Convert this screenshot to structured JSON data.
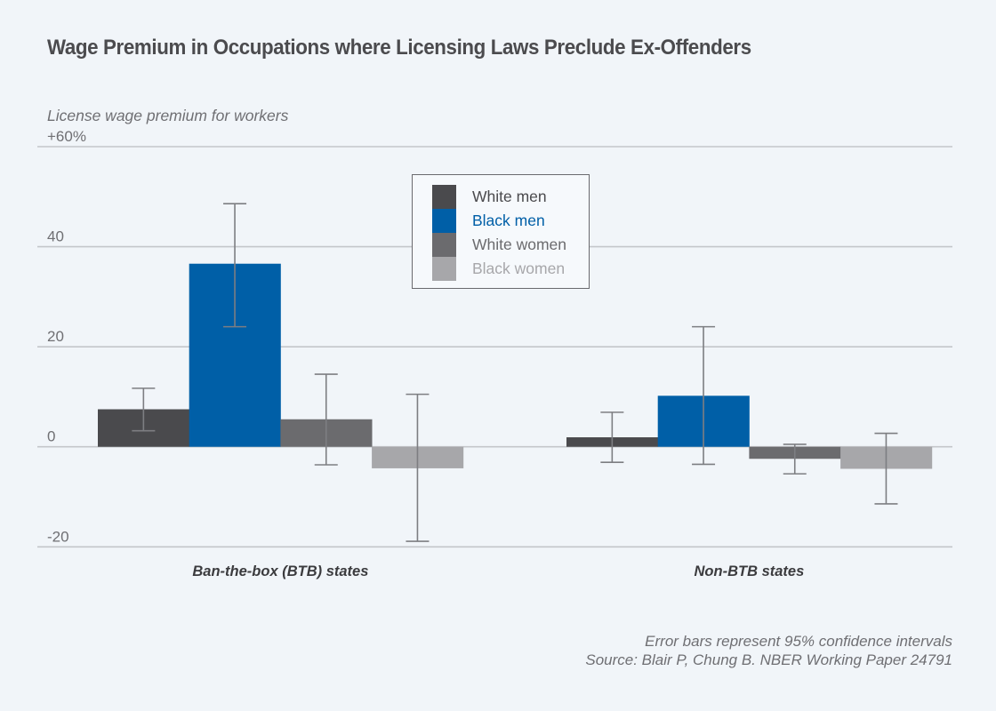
{
  "chart_data": {
    "type": "bar",
    "title": "Wage Premium in Occupations where Licensing Laws Preclude Ex-Offenders",
    "ylabel": "License wage premium for workers",
    "xlabel": "",
    "ylim": [
      -20,
      60
    ],
    "yticks": [
      {
        "value": 60,
        "label": "+60%"
      },
      {
        "value": 40,
        "label": "40"
      },
      {
        "value": 20,
        "label": "20"
      },
      {
        "value": 0,
        "label": "0"
      },
      {
        "value": -20,
        "label": "-20"
      }
    ],
    "grid": true,
    "legend_position": "top-center",
    "categories": [
      "Ban-the-box (BTB) states",
      "Non-BTB states"
    ],
    "series": [
      {
        "name": "White men",
        "color": "#4a4a4d",
        "legend_text_color": "#4a4a4d",
        "values": [
          7.5,
          1.9
        ],
        "error_low": [
          3.2,
          -3.1
        ],
        "error_high": [
          11.7,
          6.9
        ]
      },
      {
        "name": "Black men",
        "color": "#005fa7",
        "legend_text_color": "#005fa7",
        "values": [
          36.6,
          10.2
        ],
        "error_low": [
          24.0,
          -3.5
        ],
        "error_high": [
          48.6,
          24.0
        ]
      },
      {
        "name": "White women",
        "color": "#6b6b6e",
        "legend_text_color": "#6b6b6e",
        "values": [
          5.5,
          -2.4
        ],
        "error_low": [
          -3.6,
          -5.4
        ],
        "error_high": [
          14.5,
          0.5
        ]
      },
      {
        "name": "Black women",
        "color": "#a7a7aa",
        "legend_text_color": "#a7a7aa",
        "values": [
          -4.3,
          -4.4
        ],
        "error_low": [
          -18.9,
          -11.4
        ],
        "error_high": [
          10.5,
          2.7
        ]
      }
    ],
    "annotations": [
      "Error bars represent 95% confidence intervals",
      "Source: Blair P, Chung B. NBER Working Paper 24791"
    ]
  }
}
